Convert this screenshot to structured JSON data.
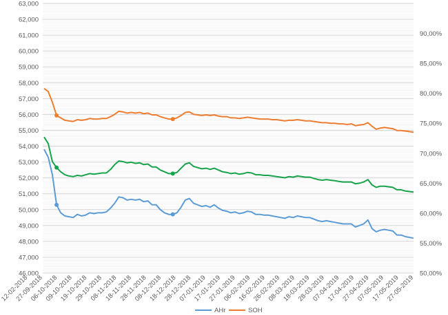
{
  "chart_data": {
    "type": "line",
    "title": "",
    "xlabel": "",
    "ylabel": "",
    "ylim": [
      46000,
      63000
    ],
    "y2lim": [
      50,
      95
    ],
    "grid": true,
    "legend_position": "bottom",
    "y_ticks": [
      "46,000",
      "47,000",
      "48,000",
      "49,000",
      "50,000",
      "51,000",
      "52,000",
      "53,000",
      "54,000",
      "55,000",
      "56,000",
      "57,000",
      "58,000",
      "59,000",
      "60,000",
      "61,000",
      "62,000",
      "63,000"
    ],
    "y2_ticks": [
      "50,00%",
      "55,00%",
      "60,00%",
      "65,00%",
      "70,00%",
      "75,00%",
      "80,00%",
      "85,00%",
      "90,00%"
    ],
    "x_labels": [
      "12-02-2018",
      "27-09-2018",
      "06-10-2018",
      "09-10-2018",
      "19-10-2018",
      "29-10-2018",
      "08-11-2018",
      "18-11-2018",
      "28-11-2018",
      "08-12-2018",
      "18-12-2018",
      "28-12-2018",
      "07-01-2019",
      "17-01-2019",
      "27-01-2019",
      "06-02-2019",
      "16-02-2019",
      "26-02-2019",
      "08-03-2019",
      "18-03-2019",
      "28-03-2019",
      "07-04-2019",
      "17-04-2019",
      "27-04-2019",
      "07-05-2019",
      "17-05-2019",
      "27-05-2019"
    ],
    "series": [
      {
        "name": "AHr",
        "axis": "left",
        "color": "#5b9bd5",
        "values": [
          53800,
          53300,
          52200,
          50300,
          49800,
          49600,
          49550,
          49500,
          49700,
          49600,
          49650,
          49800,
          49750,
          49800,
          49800,
          49850,
          50100,
          50400,
          50800,
          50750,
          50600,
          50650,
          50600,
          50650,
          50500,
          50550,
          50300,
          50300,
          50000,
          49800,
          49700,
          49700,
          49800,
          50150,
          50600,
          50700,
          50400,
          50300,
          50200,
          50250,
          50150,
          50300,
          50100,
          49950,
          49900,
          49800,
          49850,
          49750,
          49800,
          49900,
          49850,
          49700,
          49700,
          49650,
          49650,
          49600,
          49550,
          49500,
          49450,
          49550,
          49500,
          49600,
          49550,
          49500,
          49500,
          49400,
          49300,
          49250,
          49300,
          49250,
          49200,
          49150,
          49100,
          49100,
          49100,
          48900,
          49000,
          49100,
          49350,
          48800,
          48600,
          48700,
          48750,
          48700,
          48650,
          48400,
          48400,
          48300,
          48250,
          48200
        ]
      },
      {
        "name": "SOH",
        "axis": "right",
        "color": "#ed7d31",
        "values": [
          80.8,
          80.3,
          78.5,
          76.3,
          75.9,
          75.5,
          75.4,
          75.3,
          75.6,
          75.5,
          75.6,
          75.8,
          75.7,
          75.7,
          75.8,
          75.8,
          76.1,
          76.5,
          77.0,
          76.9,
          76.7,
          76.8,
          76.7,
          76.8,
          76.6,
          76.7,
          76.4,
          76.4,
          76.1,
          75.9,
          75.7,
          75.7,
          75.9,
          76.3,
          76.8,
          76.9,
          76.5,
          76.4,
          76.3,
          76.4,
          76.3,
          76.4,
          76.2,
          76.1,
          76.1,
          75.9,
          75.9,
          75.8,
          75.9,
          76.0,
          75.9,
          75.8,
          75.7,
          75.7,
          75.7,
          75.6,
          75.6,
          75.5,
          75.4,
          75.5,
          75.5,
          75.6,
          75.5,
          75.4,
          75.4,
          75.3,
          75.2,
          75.1,
          75.1,
          75.0,
          75.0,
          74.9,
          74.9,
          74.8,
          74.9,
          74.6,
          74.7,
          74.8,
          75.1,
          74.5,
          74.0,
          74.2,
          74.3,
          74.2,
          74.1,
          73.8,
          73.8,
          73.7,
          73.6,
          73.5
        ]
      },
      {
        "name": "",
        "axis": "right",
        "color": "#16a34a",
        "values": [
          72.7,
          71.6,
          68.6,
          67.6,
          66.9,
          66.4,
          66.2,
          66.1,
          66.3,
          66.2,
          66.4,
          66.6,
          66.5,
          66.6,
          66.7,
          66.7,
          67.3,
          68.1,
          68.7,
          68.6,
          68.4,
          68.5,
          68.3,
          68.4,
          68.1,
          68.2,
          67.7,
          67.7,
          67.2,
          66.9,
          66.6,
          66.6,
          66.8,
          67.5,
          68.2,
          68.4,
          67.8,
          67.6,
          67.4,
          67.5,
          67.3,
          67.5,
          67.2,
          66.9,
          66.8,
          66.6,
          66.7,
          66.5,
          66.6,
          66.8,
          66.7,
          66.4,
          66.4,
          66.3,
          66.3,
          66.2,
          66.1,
          66.0,
          65.9,
          66.1,
          66.0,
          66.2,
          66.1,
          66.0,
          66.0,
          65.8,
          65.6,
          65.5,
          65.6,
          65.5,
          65.4,
          65.3,
          65.2,
          65.2,
          65.2,
          64.9,
          65.0,
          65.2,
          65.6,
          64.7,
          64.3,
          64.5,
          64.5,
          64.4,
          64.3,
          63.9,
          63.9,
          63.7,
          63.6,
          63.5
        ]
      }
    ]
  }
}
